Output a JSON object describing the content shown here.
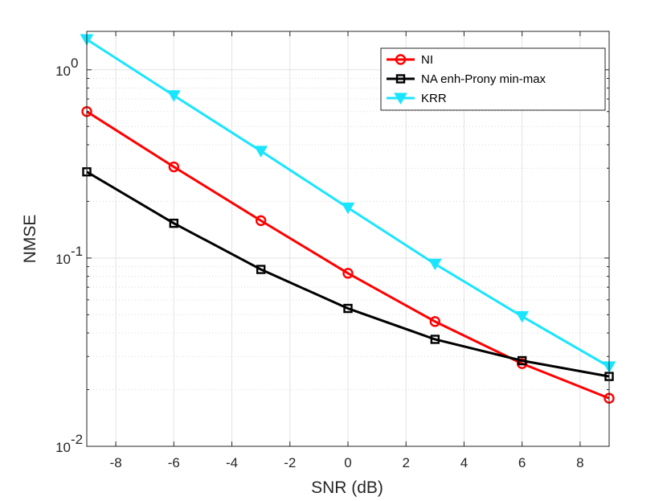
{
  "chart_data": {
    "type": "line",
    "title": "",
    "xlabel": "SNR (dB)",
    "ylabel": "NMSE",
    "xscale": "linear",
    "yscale": "log",
    "xlim": [
      -9,
      9
    ],
    "ylim": [
      0.01,
      1.6
    ],
    "xticks": [
      -8,
      -6,
      -4,
      -2,
      0,
      2,
      4,
      6,
      8
    ],
    "xtick_labels": [
      "-8",
      "-6",
      "-4",
      "-2",
      "0",
      "2",
      "4",
      "6",
      "8"
    ],
    "yticks": [
      {
        "value": 0.01,
        "base": "10",
        "exp": "-2"
      },
      {
        "value": 0.1,
        "base": "10",
        "exp": "-1"
      },
      {
        "value": 1,
        "base": "10",
        "exp": "0"
      }
    ],
    "grid": true,
    "legend_position": "top-right",
    "x": [
      -9,
      -6,
      -3,
      0,
      3,
      6,
      9
    ],
    "series": [
      {
        "name": "NI",
        "color": "#ff0000",
        "marker": "circle",
        "values": [
          0.6,
          0.305,
          0.158,
          0.083,
          0.046,
          0.0275,
          0.018
        ]
      },
      {
        "name": "NA enh-Prony min-max",
        "color": "#000000",
        "marker": "square",
        "values": [
          0.287,
          0.153,
          0.087,
          0.054,
          0.037,
          0.0285,
          0.0235
        ]
      },
      {
        "name": "KRR",
        "color": "#19e5ff",
        "marker": "triangle-down",
        "values": [
          1.45,
          0.73,
          0.37,
          0.185,
          0.093,
          0.049,
          0.0265
        ]
      }
    ]
  }
}
